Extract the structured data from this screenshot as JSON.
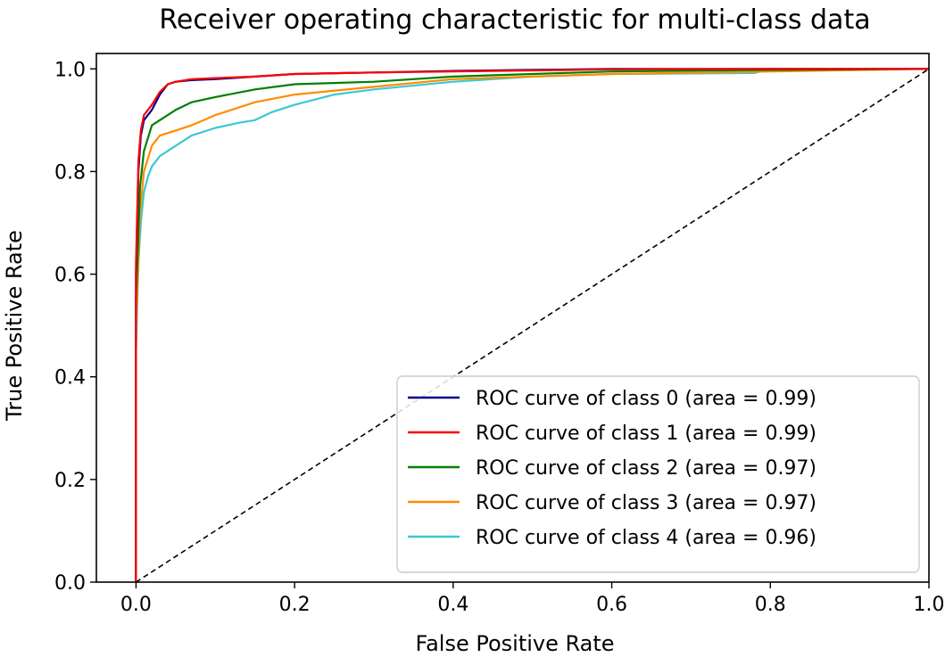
{
  "chart_data": {
    "type": "line",
    "title": "Receiver operating characteristic for multi-class data",
    "xlabel": "False Positive Rate",
    "ylabel": "True Positive Rate",
    "xlim": [
      -0.05,
      1.0
    ],
    "ylim": [
      0.0,
      1.03
    ],
    "x_ticks": [
      0.0,
      0.2,
      0.4,
      0.6,
      0.8,
      1.0
    ],
    "y_ticks": [
      0.0,
      0.2,
      0.4,
      0.6,
      0.8,
      1.0
    ],
    "x_tick_labels": [
      "0.0",
      "0.2",
      "0.4",
      "0.6",
      "0.8",
      "1.0"
    ],
    "y_tick_labels": [
      "0.0",
      "0.2",
      "0.4",
      "0.6",
      "0.8",
      "1.0"
    ],
    "grid": false,
    "legend_position": "lower-right",
    "series": [
      {
        "name": "ROC curve of class 0 (area = 0.99)",
        "color": "#00008b",
        "x": [
          0.0,
          0.0,
          0.003,
          0.006,
          0.01,
          0.02,
          0.03,
          0.04,
          0.05,
          0.07,
          0.1,
          0.15,
          0.2,
          0.3,
          0.4,
          0.5,
          0.6,
          0.8,
          1.0
        ],
        "y": [
          0.0,
          0.6,
          0.8,
          0.87,
          0.9,
          0.92,
          0.95,
          0.97,
          0.975,
          0.978,
          0.98,
          0.985,
          0.99,
          0.993,
          0.996,
          0.998,
          1.0,
          1.0,
          1.0
        ]
      },
      {
        "name": "ROC curve of class 1 (area = 0.99)",
        "color": "#ff0000",
        "x": [
          0.0,
          0.0,
          0.003,
          0.006,
          0.01,
          0.02,
          0.03,
          0.04,
          0.05,
          0.07,
          0.1,
          0.15,
          0.2,
          0.3,
          0.4,
          0.5,
          0.6,
          0.78,
          0.8,
          1.0
        ],
        "y": [
          0.0,
          0.62,
          0.82,
          0.88,
          0.91,
          0.93,
          0.955,
          0.97,
          0.975,
          0.98,
          0.982,
          0.985,
          0.99,
          0.993,
          0.995,
          0.997,
          0.999,
          1.0,
          1.0,
          1.0
        ]
      },
      {
        "name": "ROC curve of class 2 (area = 0.97)",
        "color": "#008000",
        "x": [
          0.0,
          0.0,
          0.005,
          0.01,
          0.02,
          0.03,
          0.05,
          0.07,
          0.1,
          0.15,
          0.2,
          0.3,
          0.4,
          0.5,
          0.6,
          0.8,
          1.0
        ],
        "y": [
          0.0,
          0.55,
          0.77,
          0.84,
          0.89,
          0.9,
          0.92,
          0.935,
          0.945,
          0.96,
          0.97,
          0.975,
          0.985,
          0.99,
          0.995,
          0.998,
          1.0
        ]
      },
      {
        "name": "ROC curve of class 3 (area = 0.97)",
        "color": "#ff8c00",
        "x": [
          0.0,
          0.0,
          0.005,
          0.01,
          0.02,
          0.03,
          0.05,
          0.07,
          0.1,
          0.15,
          0.2,
          0.3,
          0.4,
          0.5,
          0.6,
          0.8,
          1.0
        ],
        "y": [
          0.0,
          0.5,
          0.72,
          0.8,
          0.85,
          0.87,
          0.88,
          0.89,
          0.91,
          0.935,
          0.95,
          0.965,
          0.98,
          0.985,
          0.99,
          0.995,
          1.0
        ]
      },
      {
        "name": "ROC curve of class 4 (area = 0.96)",
        "color": "#3cc8d2",
        "x": [
          0.0,
          0.0,
          0.003,
          0.006,
          0.01,
          0.015,
          0.02,
          0.03,
          0.05,
          0.07,
          0.1,
          0.13,
          0.15,
          0.17,
          0.2,
          0.25,
          0.3,
          0.4,
          0.5,
          0.6,
          0.78,
          0.8,
          1.0
        ],
        "y": [
          0.0,
          0.45,
          0.62,
          0.7,
          0.76,
          0.79,
          0.81,
          0.83,
          0.85,
          0.87,
          0.885,
          0.895,
          0.9,
          0.915,
          0.93,
          0.95,
          0.96,
          0.975,
          0.985,
          0.99,
          0.992,
          1.0,
          1.0
        ]
      }
    ],
    "reference_line": {
      "style": "dashed",
      "color": "#000000",
      "x": [
        0.0,
        1.0
      ],
      "y": [
        0.0,
        1.0
      ]
    }
  }
}
